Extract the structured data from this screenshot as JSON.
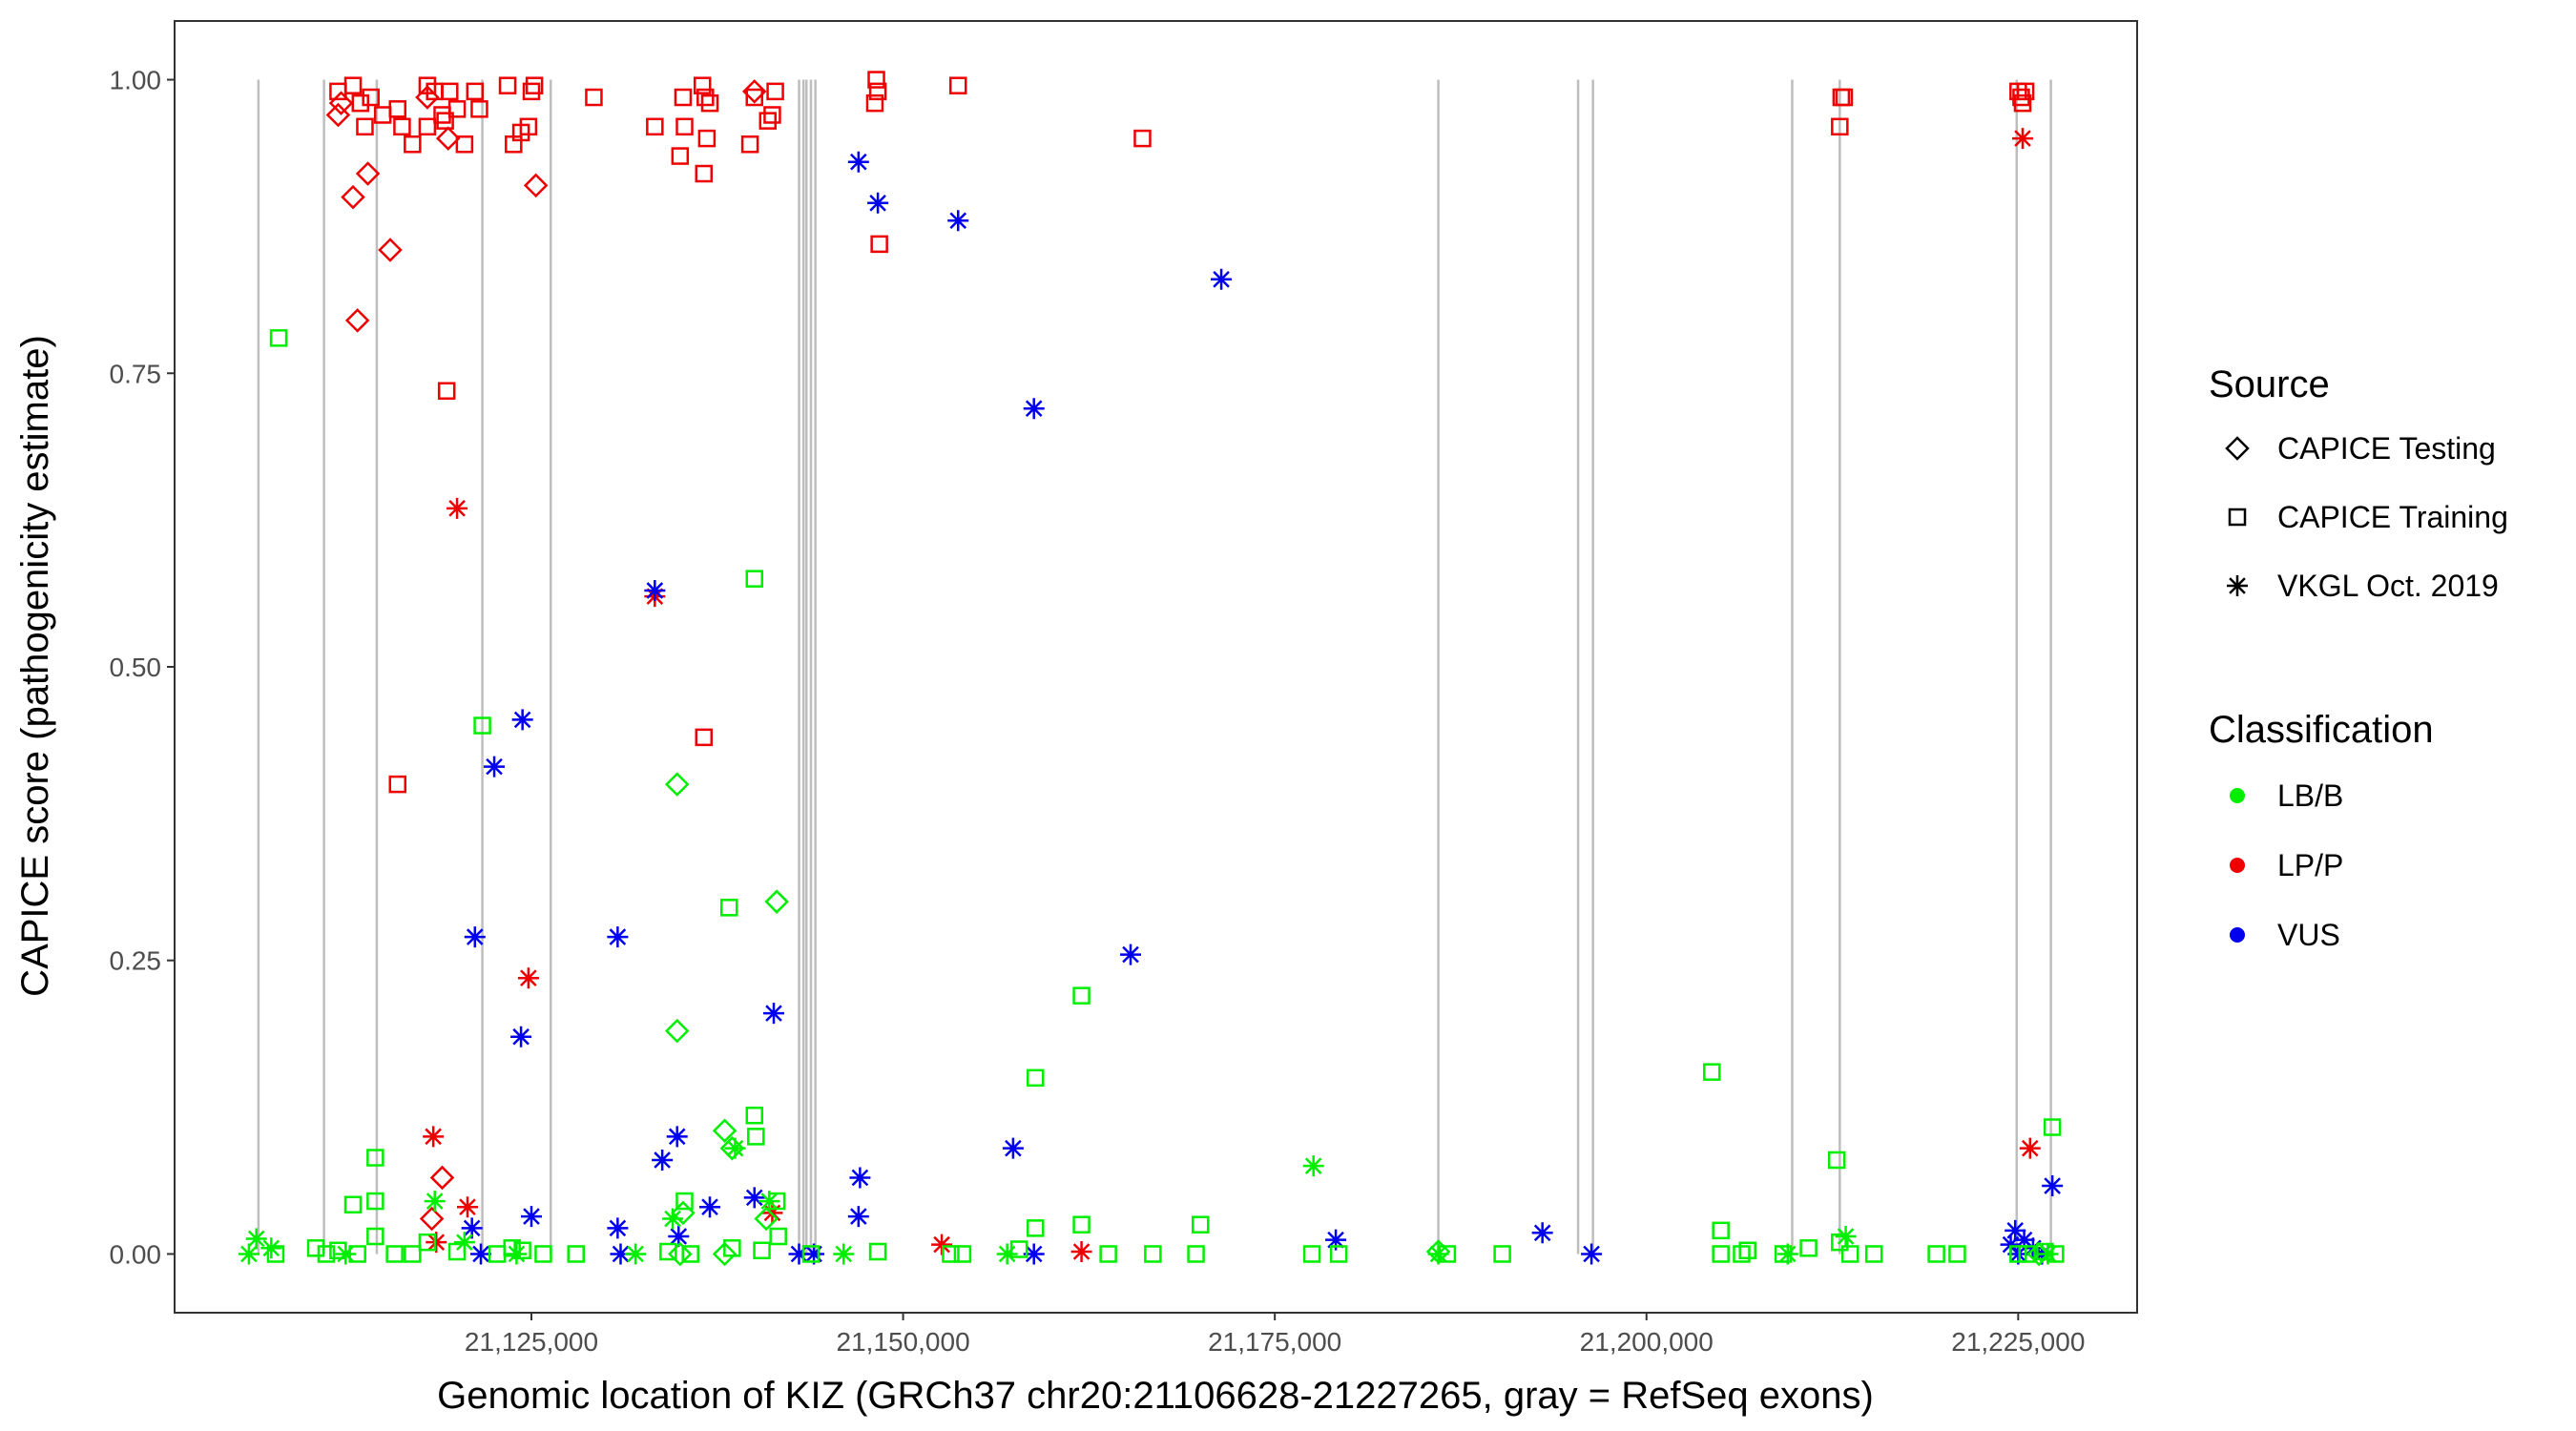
{
  "chart_data": {
    "type": "scatter",
    "xlabel": "Genomic location of KIZ (GRCh37 chr20:21106628-21227265, gray = RefSeq exons)",
    "ylabel": "CAPICE score (pathogenicity estimate)",
    "xlim": [
      21101000,
      21233000
    ],
    "ylim": [
      -0.05,
      1.05
    ],
    "x_ticks": [
      21125000,
      21150000,
      21175000,
      21200000,
      21225000
    ],
    "x_tick_labels": [
      "21,125,000",
      "21,150,000",
      "21,175,000",
      "21,200,000",
      "21,225,000"
    ],
    "y_ticks": [
      0.0,
      0.25,
      0.5,
      0.75,
      1.0
    ],
    "y_tick_labels": [
      "0.00",
      "0.25",
      "0.50",
      "0.75",
      "1.00"
    ],
    "grid": false,
    "exon_line_color": "#bebebe",
    "exon_positions": [
      21106640,
      21111050,
      21114600,
      21121700,
      21126300,
      21143000,
      21143300,
      21143500,
      21143800,
      21144100,
      21186000,
      21195400,
      21196400,
      21209800,
      21213000,
      21224900,
      21227200
    ],
    "legend_source": {
      "title": "Source",
      "entries": [
        {
          "label": "CAPICE Testing",
          "shape": "diamond"
        },
        {
          "label": "CAPICE Training",
          "shape": "square"
        },
        {
          "label": "VKGL Oct. 2019",
          "shape": "asterisk"
        }
      ]
    },
    "legend_classification": {
      "title": "Classification",
      "entries": [
        {
          "label": "LB/B",
          "color": "#00ee00"
        },
        {
          "label": "LP/P",
          "color": "#ee0000"
        },
        {
          "label": "VUS",
          "color": "#0000ee"
        }
      ]
    },
    "legend_placement": "right",
    "point_groups": [
      {
        "source": "CAPICE Training",
        "classification": "LP/P",
        "points": [
          [
            21112000,
            0.99
          ],
          [
            21113000,
            0.995
          ],
          [
            21113500,
            0.98
          ],
          [
            21114200,
            0.985
          ],
          [
            21115000,
            0.97
          ],
          [
            21116000,
            0.975
          ],
          [
            21116300,
            0.96
          ],
          [
            21113800,
            0.96
          ],
          [
            21117000,
            0.945
          ],
          [
            21118000,
            0.995
          ],
          [
            21118500,
            0.99
          ],
          [
            21118000,
            0.96
          ],
          [
            21119000,
            0.97
          ],
          [
            21119500,
            0.99
          ],
          [
            21119200,
            0.965
          ],
          [
            21120000,
            0.975
          ],
          [
            21120500,
            0.945
          ],
          [
            21121200,
            0.99
          ],
          [
            21121500,
            0.975
          ],
          [
            21123400,
            0.995
          ],
          [
            21123800,
            0.945
          ],
          [
            21124300,
            0.955
          ],
          [
            21124800,
            0.96
          ],
          [
            21125000,
            0.99
          ],
          [
            21125200,
            0.995
          ],
          [
            21129200,
            0.985
          ],
          [
            21133300,
            0.96
          ],
          [
            21135200,
            0.985
          ],
          [
            21135300,
            0.96
          ],
          [
            21135000,
            0.935
          ],
          [
            21136500,
            0.995
          ],
          [
            21136700,
            0.985
          ],
          [
            21137000,
            0.98
          ],
          [
            21136800,
            0.95
          ],
          [
            21136600,
            0.92
          ],
          [
            21139700,
            0.945
          ],
          [
            21140000,
            0.985
          ],
          [
            21140900,
            0.965
          ],
          [
            21141200,
            0.97
          ],
          [
            21141400,
            0.99
          ],
          [
            21148200,
            1.0
          ],
          [
            21148300,
            0.99
          ],
          [
            21148100,
            0.98
          ],
          [
            21148400,
            0.86
          ],
          [
            21153700,
            0.995
          ],
          [
            21166100,
            0.95
          ],
          [
            21213100,
            0.985
          ],
          [
            21213300,
            0.985
          ],
          [
            21213000,
            0.96
          ],
          [
            21225000,
            0.99
          ],
          [
            21225200,
            0.985
          ],
          [
            21225500,
            0.99
          ],
          [
            21225300,
            0.98
          ],
          [
            21119300,
            0.735
          ],
          [
            21116000,
            0.4
          ],
          [
            21136600,
            0.44
          ]
        ]
      },
      {
        "source": "CAPICE Testing",
        "classification": "LP/P",
        "points": [
          [
            21112000,
            0.97
          ],
          [
            21112200,
            0.98
          ],
          [
            21118000,
            0.985
          ],
          [
            21119400,
            0.95
          ],
          [
            21140000,
            0.99
          ],
          [
            21113000,
            0.9
          ],
          [
            21114000,
            0.92
          ],
          [
            21115500,
            0.855
          ],
          [
            21113300,
            0.795
          ],
          [
            21125300,
            0.91
          ],
          [
            21119000,
            0.065
          ],
          [
            21118300,
            0.03
          ]
        ]
      },
      {
        "source": "VKGL Oct. 2019",
        "classification": "LP/P",
        "points": [
          [
            21120000,
            0.635
          ],
          [
            21133300,
            0.56
          ],
          [
            21124800,
            0.235
          ],
          [
            21118400,
            0.1
          ],
          [
            21120700,
            0.04
          ],
          [
            21118600,
            0.01
          ],
          [
            21141200,
            0.035
          ],
          [
            21152600,
            0.008
          ],
          [
            21162000,
            0.002
          ],
          [
            21225300,
            0.95
          ],
          [
            21225800,
            0.09
          ]
        ]
      },
      {
        "source": "VKGL Oct. 2019",
        "classification": "VUS",
        "points": [
          [
            21147000,
            0.93
          ],
          [
            21148300,
            0.895
          ],
          [
            21153700,
            0.88
          ],
          [
            21171400,
            0.83
          ],
          [
            21158800,
            0.72
          ],
          [
            21133300,
            0.565
          ],
          [
            21124400,
            0.455
          ],
          [
            21122500,
            0.415
          ],
          [
            21121200,
            0.27
          ],
          [
            21130800,
            0.27
          ],
          [
            21124300,
            0.185
          ],
          [
            21141300,
            0.205
          ],
          [
            21165300,
            0.255
          ],
          [
            21157400,
            0.09
          ],
          [
            21134800,
            0.1
          ],
          [
            21133800,
            0.08
          ],
          [
            21147100,
            0.065
          ],
          [
            21140000,
            0.048
          ],
          [
            21125000,
            0.032
          ],
          [
            21147000,
            0.032
          ],
          [
            21130800,
            0.022
          ],
          [
            21121000,
            0.022
          ],
          [
            21137000,
            0.04
          ],
          [
            21134900,
            0.015
          ],
          [
            21179100,
            0.012
          ],
          [
            21193000,
            0.018
          ],
          [
            21227300,
            0.058
          ],
          [
            21224800,
            0.02
          ],
          [
            21225400,
            0.012
          ],
          [
            21224500,
            0.008
          ],
          [
            21226000,
            0.005
          ],
          [
            21121600,
            0.0
          ],
          [
            21131000,
            0.0
          ],
          [
            21143000,
            0.0
          ],
          [
            21144000,
            0.0
          ],
          [
            21158800,
            0.0
          ],
          [
            21196300,
            0.0
          ],
          [
            21225000,
            0.0
          ],
          [
            21226600,
            0.0
          ]
        ]
      },
      {
        "source": "VKGL Oct. 2019",
        "classification": "LB/B",
        "points": [
          [
            21106500,
            0.013
          ],
          [
            21106000,
            0.0
          ],
          [
            21107500,
            0.005
          ],
          [
            21118500,
            0.045
          ],
          [
            21120500,
            0.01
          ],
          [
            21134500,
            0.03
          ],
          [
            21138700,
            0.09
          ],
          [
            21141000,
            0.045
          ],
          [
            21177600,
            0.075
          ],
          [
            21213400,
            0.015
          ],
          [
            21146000,
            0.0
          ],
          [
            21157000,
            0.0
          ],
          [
            21186000,
            0.0
          ],
          [
            21209500,
            0.0
          ],
          [
            21227000,
            0.0
          ],
          [
            21112500,
            0.0
          ],
          [
            21124000,
            0.0
          ],
          [
            21132000,
            0.0
          ]
        ]
      },
      {
        "source": "CAPICE Training",
        "classification": "LB/B",
        "points": [
          [
            21108000,
            0.78
          ],
          [
            21140000,
            0.575
          ],
          [
            21121700,
            0.45
          ],
          [
            21138300,
            0.295
          ],
          [
            21162000,
            0.22
          ],
          [
            21158900,
            0.15
          ],
          [
            21204400,
            0.155
          ],
          [
            21140000,
            0.118
          ],
          [
            21140100,
            0.1
          ],
          [
            21227300,
            0.108
          ],
          [
            21114500,
            0.082
          ],
          [
            21212800,
            0.08
          ],
          [
            21113000,
            0.042
          ],
          [
            21114500,
            0.045
          ],
          [
            21135300,
            0.045
          ],
          [
            21141500,
            0.045
          ],
          [
            21170000,
            0.025
          ],
          [
            21158900,
            0.022
          ],
          [
            21162000,
            0.025
          ],
          [
            21205000,
            0.02
          ],
          [
            21114500,
            0.015
          ],
          [
            21118000,
            0.01
          ],
          [
            21123700,
            0.005
          ],
          [
            21107800,
            0.0
          ],
          [
            21110500,
            0.005
          ],
          [
            21111200,
            0.0
          ],
          [
            21112000,
            0.003
          ],
          [
            21113300,
            0.0
          ],
          [
            21115800,
            0.0
          ],
          [
            21117000,
            0.0
          ],
          [
            21120000,
            0.002
          ],
          [
            21122700,
            0.0
          ],
          [
            21124400,
            0.003
          ],
          [
            21125800,
            0.0
          ],
          [
            21128000,
            0.0
          ],
          [
            21134200,
            0.002
          ],
          [
            21135700,
            0.0
          ],
          [
            21138500,
            0.005
          ],
          [
            21140500,
            0.003
          ],
          [
            21141600,
            0.015
          ],
          [
            21143800,
            0.0
          ],
          [
            21148300,
            0.002
          ],
          [
            21153200,
            0.0
          ],
          [
            21154000,
            0.0
          ],
          [
            21157800,
            0.004
          ],
          [
            21163800,
            0.0
          ],
          [
            21166800,
            0.0
          ],
          [
            21169700,
            0.0
          ],
          [
            21177500,
            0.0
          ],
          [
            21179300,
            0.0
          ],
          [
            21186600,
            0.0
          ],
          [
            21190300,
            0.0
          ],
          [
            21205000,
            0.0
          ],
          [
            21206400,
            0.0
          ],
          [
            21206800,
            0.003
          ],
          [
            21209200,
            0.0
          ],
          [
            21210900,
            0.005
          ],
          [
            21213000,
            0.01
          ],
          [
            21213700,
            0.0
          ],
          [
            21215300,
            0.0
          ],
          [
            21219500,
            0.0
          ],
          [
            21220900,
            0.0
          ],
          [
            21225000,
            0.0
          ],
          [
            21225600,
            0.0
          ],
          [
            21226800,
            0.002
          ],
          [
            21227500,
            0.0
          ]
        ]
      },
      {
        "source": "CAPICE Testing",
        "classification": "LB/B",
        "points": [
          [
            21134800,
            0.4
          ],
          [
            21141500,
            0.3
          ],
          [
            21134800,
            0.19
          ],
          [
            21138000,
            0.105
          ],
          [
            21138500,
            0.09
          ],
          [
            21135200,
            0.035
          ],
          [
            21140800,
            0.03
          ],
          [
            21186000,
            0.002
          ],
          [
            21138000,
            0.0
          ],
          [
            21135000,
            0.0
          ],
          [
            21226400,
            0.0
          ]
        ]
      }
    ]
  }
}
